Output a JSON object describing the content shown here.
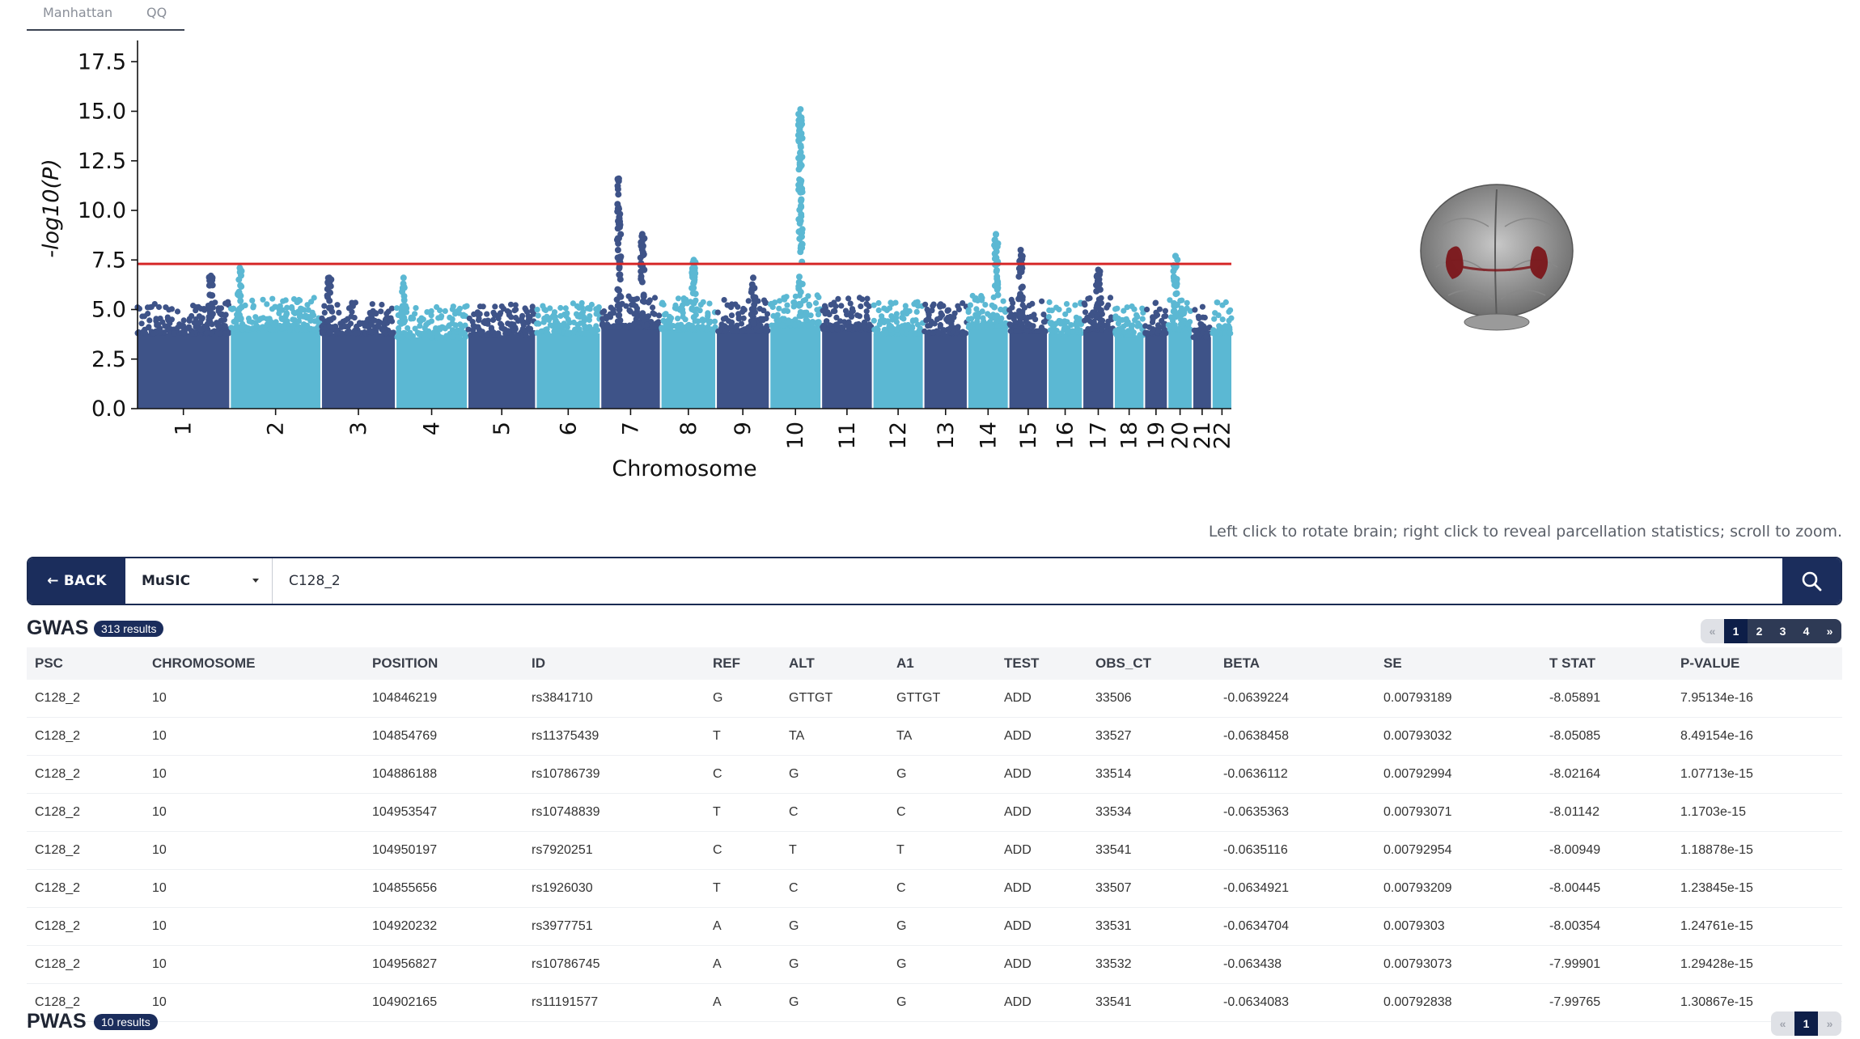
{
  "tabs": [
    {
      "label": "Manhattan"
    },
    {
      "label": "QQ"
    }
  ],
  "chart_data": {
    "type": "scatter",
    "subtype": "manhattan",
    "title": "",
    "xlabel": "Chromosome",
    "ylabel": "-log10(P)",
    "ylim": [
      0,
      18
    ],
    "yticks": [
      "0.0",
      "2.5",
      "5.0",
      "7.5",
      "10.0",
      "12.5",
      "15.0",
      "17.5"
    ],
    "threshold": 7.3,
    "threshold_color": "#d62728",
    "colors": [
      "#3e5388",
      "#5bb8d3"
    ],
    "chromosomes": [
      "1",
      "2",
      "3",
      "4",
      "5",
      "6",
      "7",
      "8",
      "9",
      "10",
      "11",
      "12",
      "13",
      "14",
      "15",
      "16",
      "17",
      "18",
      "19",
      "20",
      "21",
      "22"
    ],
    "baseline_peak": [
      5.0,
      5.2,
      5.0,
      4.8,
      4.9,
      5.0,
      5.3,
      5.2,
      5.1,
      5.4,
      5.2,
      5.0,
      5.0,
      5.3,
      5.1,
      5.0,
      5.2,
      4.9,
      5.0,
      5.2,
      4.8,
      5.0
    ],
    "peaks": [
      {
        "chr": "1",
        "pos": 0.8,
        "max": 6.7
      },
      {
        "chr": "2",
        "pos": 0.1,
        "max": 7.1
      },
      {
        "chr": "3",
        "pos": 0.1,
        "max": 6.6
      },
      {
        "chr": "4",
        "pos": 0.1,
        "max": 6.6
      },
      {
        "chr": "7",
        "pos": 0.3,
        "max": 11.6
      },
      {
        "chr": "7",
        "pos": 0.7,
        "max": 8.8
      },
      {
        "chr": "8",
        "pos": 0.6,
        "max": 7.5
      },
      {
        "chr": "9",
        "pos": 0.7,
        "max": 6.6
      },
      {
        "chr": "10",
        "pos": 0.6,
        "max": 15.1
      },
      {
        "chr": "14",
        "pos": 0.7,
        "max": 8.8
      },
      {
        "chr": "15",
        "pos": 0.3,
        "max": 8.0
      },
      {
        "chr": "17",
        "pos": 0.5,
        "max": 7.0
      },
      {
        "chr": "20",
        "pos": 0.3,
        "max": 7.7
      }
    ]
  },
  "brain": {
    "tissue_color": "#8a8a8a",
    "highlight_color": "#7a0f14"
  },
  "hint": "Left click to rotate brain; right click to reveal parcellation statistics; scroll to zoom.",
  "search": {
    "back_label": "← BACK",
    "dataset": "MuSIC",
    "query": "C128_2"
  },
  "gwas": {
    "title": "GWAS",
    "badge": "313 results",
    "pages": [
      "«",
      "1",
      "2",
      "3",
      "4",
      "»"
    ],
    "columns": [
      "PSC",
      "CHROMOSOME",
      "POSITION",
      "ID",
      "REF",
      "ALT",
      "A1",
      "TEST",
      "OBS_CT",
      "BETA",
      "SE",
      "T STAT",
      "P-VALUE"
    ],
    "rows": [
      [
        "C128_2",
        "10",
        "104846219",
        "rs3841710",
        "G",
        "GTTGT",
        "GTTGT",
        "ADD",
        "33506",
        "-0.0639224",
        "0.00793189",
        "-8.05891",
        "7.95134e-16"
      ],
      [
        "C128_2",
        "10",
        "104854769",
        "rs11375439",
        "T",
        "TA",
        "TA",
        "ADD",
        "33527",
        "-0.0638458",
        "0.00793032",
        "-8.05085",
        "8.49154e-16"
      ],
      [
        "C128_2",
        "10",
        "104886188",
        "rs10786739",
        "C",
        "G",
        "G",
        "ADD",
        "33514",
        "-0.0636112",
        "0.00792994",
        "-8.02164",
        "1.07713e-15"
      ],
      [
        "C128_2",
        "10",
        "104953547",
        "rs10748839",
        "T",
        "C",
        "C",
        "ADD",
        "33534",
        "-0.0635363",
        "0.00793071",
        "-8.01142",
        "1.1703e-15"
      ],
      [
        "C128_2",
        "10",
        "104950197",
        "rs7920251",
        "C",
        "T",
        "T",
        "ADD",
        "33541",
        "-0.0635116",
        "0.00792954",
        "-8.00949",
        "1.18878e-15"
      ],
      [
        "C128_2",
        "10",
        "104855656",
        "rs1926030",
        "T",
        "C",
        "C",
        "ADD",
        "33507",
        "-0.0634921",
        "0.00793209",
        "-8.00445",
        "1.23845e-15"
      ],
      [
        "C128_2",
        "10",
        "104920232",
        "rs3977751",
        "A",
        "G",
        "G",
        "ADD",
        "33531",
        "-0.0634704",
        "0.0079303",
        "-8.00354",
        "1.24761e-15"
      ],
      [
        "C128_2",
        "10",
        "104956827",
        "rs10786745",
        "A",
        "G",
        "G",
        "ADD",
        "33532",
        "-0.063438",
        "0.00793073",
        "-7.99901",
        "1.29428e-15"
      ],
      [
        "C128_2",
        "10",
        "104902165",
        "rs11191577",
        "A",
        "G",
        "G",
        "ADD",
        "33541",
        "-0.0634083",
        "0.00792838",
        "-7.99765",
        "1.30867e-15"
      ]
    ]
  },
  "pwas": {
    "title": "PWAS",
    "badge": "10 results",
    "pages": [
      "«",
      "1",
      "»"
    ]
  }
}
